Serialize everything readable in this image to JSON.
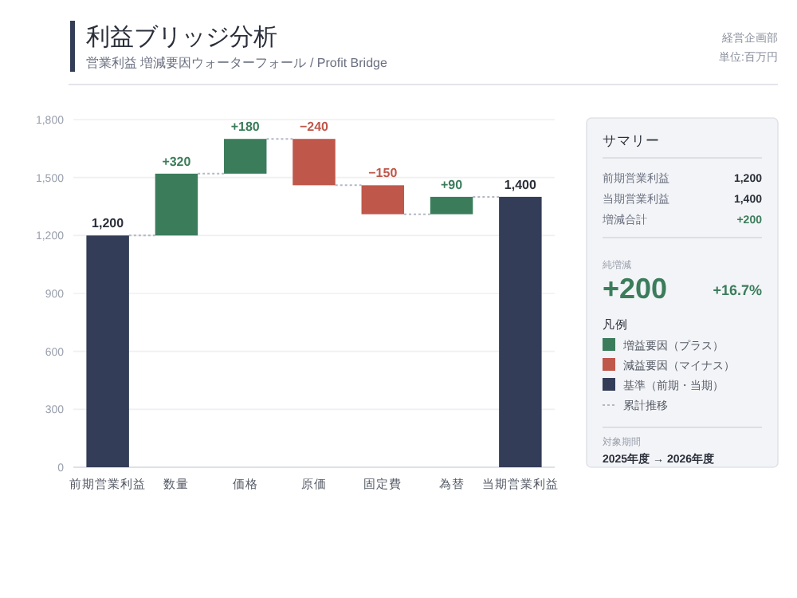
{
  "chart_data": [
    {
      "type": "bar",
      "title": "利益ブリッジ分析",
      "subtitle": "営業利益 増減要因ウォーターフォール / Profit Bridge",
      "annotations": [
        "経営企画部",
        "単位:百万円",
        "累計推移"
      ],
      "categories": [
        "前期営業利益",
        "数量",
        "価格",
        "原価",
        "固定費",
        "為替",
        "当期営業利益"
      ],
      "series": [
        {
          "name": "増益要因（プラス）",
          "color": "#3b7d5b",
          "base": [
            null,
            1200,
            1520,
            null,
            null,
            1310,
            null
          ],
          "values": [
            null,
            320,
            180,
            null,
            null,
            90,
            null
          ],
          "value_labels": [
            null,
            "+320",
            "+180",
            null,
            null,
            "+90",
            null
          ]
        },
        {
          "name": "減益要因（マイナス）",
          "color": "#bf574a",
          "base": [
            null,
            null,
            null,
            1700,
            1460,
            null,
            null
          ],
          "values": [
            null,
            null,
            null,
            -240,
            -150,
            null,
            null
          ],
          "value_labels": [
            null,
            null,
            null,
            "−240",
            "−150",
            null,
            null
          ]
        },
        {
          "name": "基準（前期・当期）",
          "color": "#343d57",
          "base": [
            0,
            null,
            null,
            null,
            null,
            null,
            0
          ],
          "values": [
            1200,
            null,
            null,
            null,
            null,
            null,
            1400
          ],
          "value_labels": [
            "1,200",
            null,
            null,
            null,
            null,
            null,
            "1,400"
          ]
        }
      ],
      "legend_title": "凡例",
      "legend": "right",
      "ylim": [
        0,
        1800
      ],
      "yticks": [
        0,
        300,
        600,
        900,
        {
          "value": 1200,
          "label": "1,200"
        },
        {
          "value": 1500,
          "label": "1,500"
        },
        {
          "value": 1800,
          "label": "1,800"
        }
      ],
      "grid": "y"
    },
    {
      "type": "other",
      "title": "サマリー",
      "annotations": [
        "前期営業利益",
        "1,200",
        "当期営業利益",
        "1,400",
        "増減合計",
        "+200",
        "純増減",
        "+200",
        "+16.7%",
        "対象期間",
        "2025年度 → 2026年度"
      ]
    }
  ]
}
